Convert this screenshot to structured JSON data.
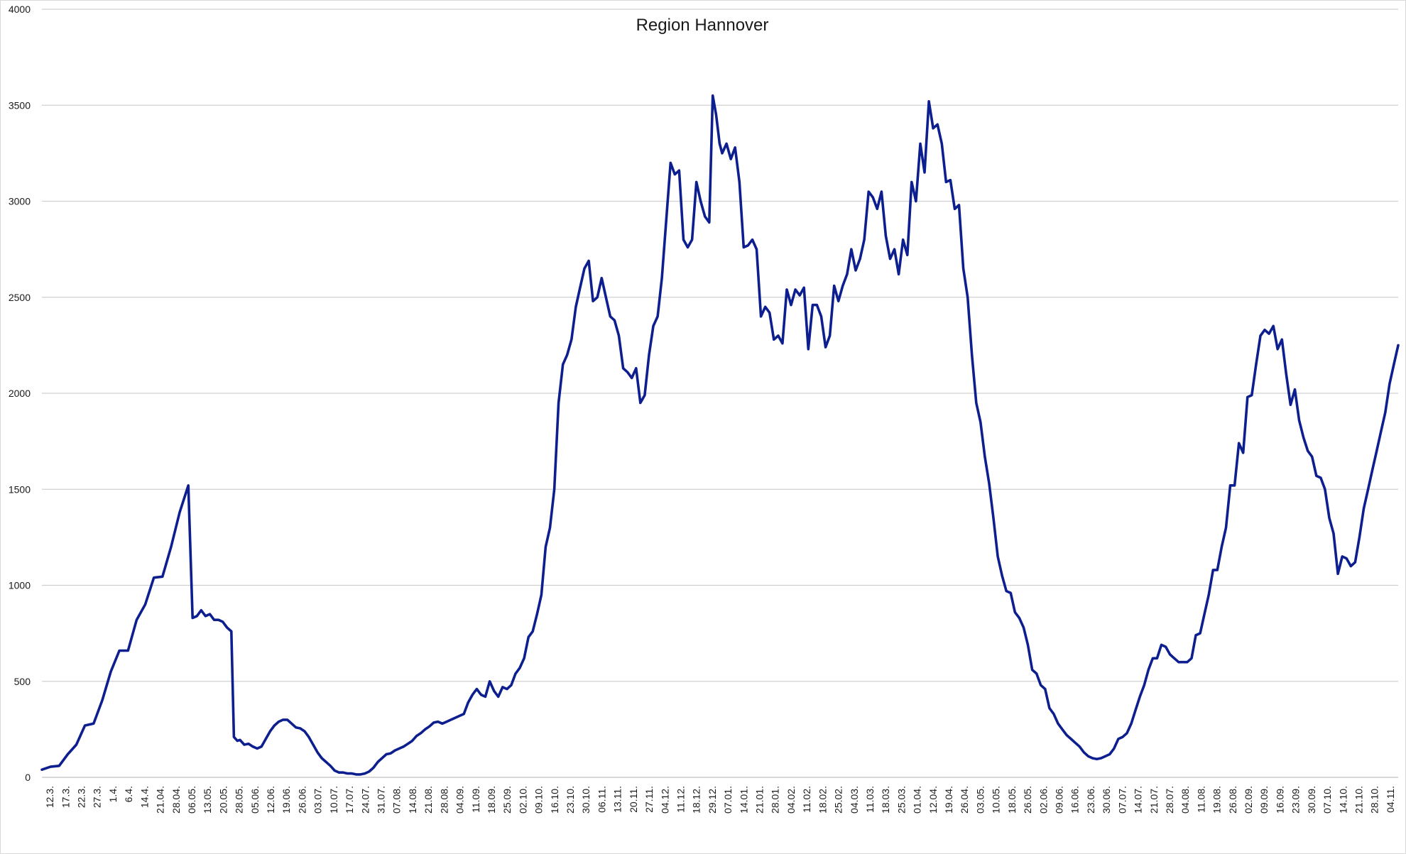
{
  "colors": {
    "series": "#0d1f8f",
    "grid": "#d0d0d0"
  },
  "chart_data": {
    "type": "line",
    "title": "Region Hannover",
    "xlabel": "",
    "ylabel": "",
    "ylim": [
      0,
      4000
    ],
    "yticks": [
      "0",
      "500",
      "1000",
      "1500",
      "2000",
      "2500",
      "3000",
      "3500",
      "4000"
    ],
    "grid": true,
    "legend": "none",
    "x_tick_labels": [
      "12.3.",
      "17.3.",
      "22.3.",
      "27.3.",
      "1.4.",
      "6.4.",
      "14.4.",
      "21.04.",
      "28.04.",
      "06.05.",
      "13.05.",
      "20.05.",
      "28.05.",
      "05.06.",
      "12.06.",
      "19.06.",
      "26.06.",
      "03.07.",
      "10.07.",
      "17.07.",
      "24.07.",
      "31.07.",
      "07.08.",
      "14.08.",
      "21.08.",
      "28.08.",
      "04.09.",
      "11.09.",
      "18.09.",
      "25.09.",
      "02.10.",
      "09.10.",
      "16.10.",
      "23.10.",
      "30.10.",
      "06.11.",
      "13.11.",
      "20.11.",
      "27.11.",
      "04.12.",
      "11.12.",
      "18.12.",
      "29.12.",
      "07.01.",
      "14.01.",
      "21.01.",
      "28.01.",
      "04.02.",
      "11.02.",
      "18.02.",
      "25.02.",
      "04.03.",
      "11.03.",
      "18.03.",
      "25.03.",
      "01.04.",
      "12.04.",
      "19.04.",
      "26.04.",
      "03.05.",
      "10.05.",
      "18.05.",
      "26.05.",
      "02.06.",
      "09.06.",
      "16.06.",
      "23.06.",
      "30.06.",
      "07.07.",
      "14.07.",
      "21.07.",
      "28.07.",
      "04.08.",
      "11.08.",
      "19.08.",
      "26.08.",
      "02.09.",
      "09.09.",
      "16.09.",
      "23.09.",
      "30.09.",
      "07.10.",
      "14.10.",
      "21.10.",
      "28.10.",
      "04.11."
    ],
    "series": [
      {
        "values": [
          [
            0,
            40
          ],
          [
            1,
            55
          ],
          [
            2,
            60
          ],
          [
            3,
            120
          ],
          [
            4,
            170
          ],
          [
            5,
            270
          ],
          [
            6,
            280
          ],
          [
            7,
            400
          ],
          [
            8,
            550
          ],
          [
            9,
            660
          ],
          [
            10,
            660
          ],
          [
            11,
            820
          ],
          [
            12,
            900
          ],
          [
            13,
            1040
          ],
          [
            14,
            1045
          ],
          [
            15,
            1200
          ],
          [
            16,
            1380
          ],
          [
            17,
            1520
          ],
          [
            17.5,
            830
          ],
          [
            18,
            840
          ],
          [
            18.5,
            870
          ],
          [
            19,
            840
          ],
          [
            19.5,
            850
          ],
          [
            20,
            820
          ],
          [
            20.5,
            820
          ],
          [
            21,
            810
          ],
          [
            21.5,
            780
          ],
          [
            22,
            760
          ],
          [
            22.3,
            210
          ],
          [
            22.7,
            190
          ],
          [
            23,
            195
          ],
          [
            23.5,
            170
          ],
          [
            24,
            175
          ],
          [
            24.5,
            160
          ],
          [
            25,
            150
          ],
          [
            25.5,
            160
          ],
          [
            26,
            200
          ],
          [
            26.5,
            240
          ],
          [
            27,
            270
          ],
          [
            27.5,
            290
          ],
          [
            28,
            300
          ],
          [
            28.5,
            300
          ],
          [
            29,
            280
          ],
          [
            29.5,
            260
          ],
          [
            30,
            255
          ],
          [
            30.5,
            240
          ],
          [
            31,
            210
          ],
          [
            31.5,
            170
          ],
          [
            32,
            130
          ],
          [
            32.5,
            100
          ],
          [
            33,
            80
          ],
          [
            33.5,
            60
          ],
          [
            34,
            35
          ],
          [
            34.5,
            25
          ],
          [
            35,
            25
          ],
          [
            35.5,
            20
          ],
          [
            36,
            20
          ],
          [
            36.5,
            15
          ],
          [
            37,
            15
          ],
          [
            37.5,
            20
          ],
          [
            38,
            30
          ],
          [
            38.5,
            50
          ],
          [
            39,
            80
          ],
          [
            39.5,
            100
          ],
          [
            40,
            120
          ],
          [
            40.5,
            125
          ],
          [
            41,
            140
          ],
          [
            41.5,
            150
          ],
          [
            42,
            160
          ],
          [
            42.5,
            175
          ],
          [
            43,
            190
          ],
          [
            43.5,
            215
          ],
          [
            44,
            230
          ],
          [
            44.5,
            250
          ],
          [
            45,
            265
          ],
          [
            45.5,
            285
          ],
          [
            46,
            290
          ],
          [
            46.5,
            280
          ],
          [
            47,
            290
          ],
          [
            47.5,
            300
          ],
          [
            48,
            310
          ],
          [
            48.5,
            320
          ],
          [
            49,
            330
          ],
          [
            49.5,
            390
          ],
          [
            50,
            430
          ],
          [
            50.5,
            460
          ],
          [
            51,
            430
          ],
          [
            51.5,
            420
          ],
          [
            52,
            500
          ],
          [
            52.5,
            450
          ],
          [
            53,
            420
          ],
          [
            53.5,
            470
          ],
          [
            54,
            460
          ],
          [
            54.5,
            480
          ],
          [
            55,
            540
          ],
          [
            55.5,
            570
          ],
          [
            56,
            620
          ],
          [
            56.5,
            730
          ],
          [
            57,
            760
          ],
          [
            57.5,
            850
          ],
          [
            58,
            950
          ],
          [
            58.5,
            1200
          ],
          [
            59,
            1300
          ],
          [
            59.5,
            1500
          ],
          [
            60,
            1950
          ],
          [
            60.5,
            2150
          ],
          [
            61,
            2200
          ],
          [
            61.5,
            2280
          ],
          [
            62,
            2450
          ],
          [
            62.5,
            2550
          ],
          [
            63,
            2650
          ],
          [
            63.5,
            2690
          ],
          [
            64,
            2480
          ],
          [
            64.5,
            2500
          ],
          [
            65,
            2600
          ],
          [
            65.5,
            2500
          ],
          [
            66,
            2400
          ],
          [
            66.5,
            2380
          ],
          [
            67,
            2300
          ],
          [
            67.5,
            2130
          ],
          [
            68,
            2110
          ],
          [
            68.5,
            2080
          ],
          [
            69,
            2130
          ],
          [
            69.5,
            1950
          ],
          [
            70,
            1990
          ],
          [
            70.5,
            2200
          ],
          [
            71,
            2350
          ],
          [
            71.5,
            2400
          ],
          [
            72,
            2600
          ],
          [
            72.5,
            2900
          ],
          [
            73,
            3200
          ],
          [
            73.5,
            3140
          ],
          [
            74,
            3160
          ],
          [
            74.5,
            2800
          ],
          [
            75,
            2760
          ],
          [
            75.5,
            2800
          ],
          [
            76,
            3100
          ],
          [
            76.5,
            3000
          ],
          [
            77,
            2920
          ],
          [
            77.5,
            2890
          ],
          [
            77.9,
            3550
          ],
          [
            78.3,
            3450
          ],
          [
            78.7,
            3300
          ],
          [
            79,
            3250
          ],
          [
            79.5,
            3300
          ],
          [
            80,
            3220
          ],
          [
            80.5,
            3280
          ],
          [
            81,
            3100
          ],
          [
            81.5,
            2760
          ],
          [
            82,
            2770
          ],
          [
            82.5,
            2800
          ],
          [
            83,
            2750
          ],
          [
            83.5,
            2400
          ],
          [
            84,
            2450
          ],
          [
            84.5,
            2420
          ],
          [
            85,
            2280
          ],
          [
            85.5,
            2300
          ],
          [
            86,
            2260
          ],
          [
            86.5,
            2540
          ],
          [
            87,
            2460
          ],
          [
            87.5,
            2540
          ],
          [
            88,
            2510
          ],
          [
            88.5,
            2550
          ],
          [
            89,
            2230
          ],
          [
            89.5,
            2460
          ],
          [
            90,
            2460
          ],
          [
            90.5,
            2400
          ],
          [
            91,
            2240
          ],
          [
            91.5,
            2300
          ],
          [
            92,
            2560
          ],
          [
            92.5,
            2480
          ],
          [
            93,
            2560
          ],
          [
            93.5,
            2620
          ],
          [
            94,
            2750
          ],
          [
            94.5,
            2640
          ],
          [
            95,
            2700
          ],
          [
            95.5,
            2800
          ],
          [
            96,
            3050
          ],
          [
            96.5,
            3020
          ],
          [
            97,
            2960
          ],
          [
            97.5,
            3050
          ],
          [
            98,
            2820
          ],
          [
            98.5,
            2700
          ],
          [
            99,
            2750
          ],
          [
            99.5,
            2620
          ],
          [
            100,
            2800
          ],
          [
            100.5,
            2720
          ],
          [
            101,
            3100
          ],
          [
            101.5,
            3000
          ],
          [
            102,
            3300
          ],
          [
            102.5,
            3150
          ],
          [
            103,
            3520
          ],
          [
            103.5,
            3380
          ],
          [
            104,
            3400
          ],
          [
            104.5,
            3300
          ],
          [
            105,
            3100
          ],
          [
            105.5,
            3110
          ],
          [
            106,
            2960
          ],
          [
            106.5,
            2980
          ],
          [
            107,
            2650
          ],
          [
            107.5,
            2500
          ],
          [
            108,
            2200
          ],
          [
            108.5,
            1950
          ],
          [
            109,
            1850
          ],
          [
            109.5,
            1670
          ],
          [
            110,
            1530
          ],
          [
            110.5,
            1350
          ],
          [
            111,
            1150
          ],
          [
            111.5,
            1050
          ],
          [
            112,
            970
          ],
          [
            112.5,
            960
          ],
          [
            113,
            860
          ],
          [
            113.5,
            830
          ],
          [
            114,
            780
          ],
          [
            114.5,
            690
          ],
          [
            115,
            560
          ],
          [
            115.5,
            540
          ],
          [
            116,
            480
          ],
          [
            116.5,
            460
          ],
          [
            117,
            360
          ],
          [
            117.5,
            330
          ],
          [
            118,
            280
          ],
          [
            118.5,
            250
          ],
          [
            119,
            220
          ],
          [
            119.5,
            200
          ],
          [
            120,
            180
          ],
          [
            120.5,
            160
          ],
          [
            121,
            130
          ],
          [
            121.5,
            110
          ],
          [
            122,
            100
          ],
          [
            122.5,
            95
          ],
          [
            123,
            100
          ],
          [
            123.5,
            110
          ],
          [
            124,
            120
          ],
          [
            124.5,
            150
          ],
          [
            125,
            200
          ],
          [
            125.5,
            210
          ],
          [
            126,
            230
          ],
          [
            126.5,
            280
          ],
          [
            127,
            350
          ],
          [
            127.5,
            420
          ],
          [
            128,
            480
          ],
          [
            128.5,
            560
          ],
          [
            129,
            620
          ],
          [
            129.5,
            620
          ],
          [
            130,
            690
          ],
          [
            130.5,
            680
          ],
          [
            131,
            640
          ],
          [
            131.5,
            620
          ],
          [
            132,
            600
          ],
          [
            132.5,
            600
          ],
          [
            133,
            600
          ],
          [
            133.5,
            620
          ],
          [
            134,
            740
          ],
          [
            134.5,
            750
          ],
          [
            135,
            850
          ],
          [
            135.5,
            950
          ],
          [
            136,
            1080
          ],
          [
            136.5,
            1080
          ],
          [
            137,
            1200
          ],
          [
            137.5,
            1300
          ],
          [
            138,
            1520
          ],
          [
            138.5,
            1520
          ],
          [
            139,
            1740
          ],
          [
            139.5,
            1690
          ],
          [
            140,
            1980
          ],
          [
            140.5,
            1990
          ],
          [
            141,
            2150
          ],
          [
            141.5,
            2300
          ],
          [
            142,
            2330
          ],
          [
            142.5,
            2310
          ],
          [
            143,
            2350
          ],
          [
            143.5,
            2230
          ],
          [
            144,
            2280
          ],
          [
            144.5,
            2100
          ],
          [
            145,
            1940
          ],
          [
            145.5,
            2020
          ],
          [
            146,
            1860
          ],
          [
            146.5,
            1770
          ],
          [
            147,
            1700
          ],
          [
            147.5,
            1670
          ],
          [
            148,
            1570
          ],
          [
            148.5,
            1560
          ],
          [
            149,
            1500
          ],
          [
            149.5,
            1350
          ],
          [
            150,
            1270
          ],
          [
            150.5,
            1060
          ],
          [
            151,
            1150
          ],
          [
            151.5,
            1140
          ],
          [
            152,
            1100
          ],
          [
            152.5,
            1120
          ],
          [
            153,
            1250
          ],
          [
            153.5,
            1400
          ],
          [
            154,
            1500
          ],
          [
            154.5,
            1600
          ],
          [
            155,
            1700
          ],
          [
            155.5,
            1800
          ],
          [
            156,
            1900
          ],
          [
            156.5,
            2050
          ],
          [
            157,
            2150
          ],
          [
            157.5,
            2250
          ]
        ]
      }
    ]
  }
}
